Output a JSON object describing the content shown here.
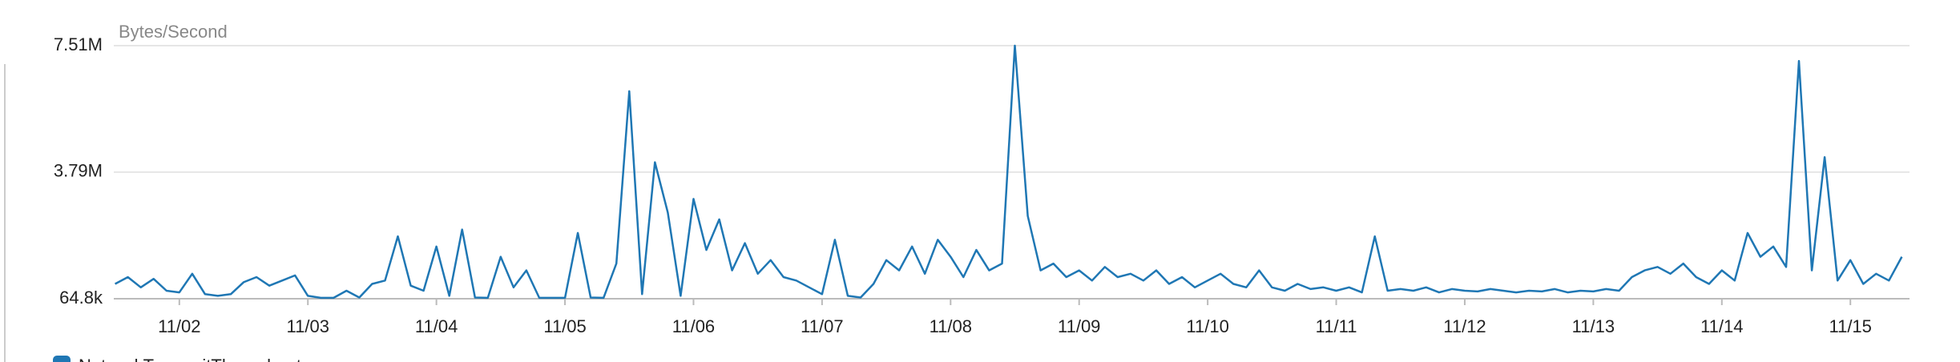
{
  "chart_data": {
    "type": "line",
    "y_label": "Bytes/Second",
    "ylim": [
      64800,
      7510000
    ],
    "yticks": [
      {
        "value": 64800,
        "label": "64.8k"
      },
      {
        "value": 3790000,
        "label": "3.79M"
      },
      {
        "value": 7510000,
        "label": "7.51M"
      }
    ],
    "xlim": [
      1.49,
      15.46
    ],
    "xticks": [
      {
        "value": 2,
        "label": "11/02"
      },
      {
        "value": 3,
        "label": "11/03"
      },
      {
        "value": 4,
        "label": "11/04"
      },
      {
        "value": 5,
        "label": "11/05"
      },
      {
        "value": 6,
        "label": "11/06"
      },
      {
        "value": 7,
        "label": "11/07"
      },
      {
        "value": 8,
        "label": "11/08"
      },
      {
        "value": 9,
        "label": "11/09"
      },
      {
        "value": 10,
        "label": "11/10"
      },
      {
        "value": 11,
        "label": "11/11"
      },
      {
        "value": 12,
        "label": "11/12"
      },
      {
        "value": 13,
        "label": "11/13"
      },
      {
        "value": 14,
        "label": "11/14"
      },
      {
        "value": 15,
        "label": "11/15"
      }
    ],
    "grid": true,
    "x": [
      1.5,
      1.6,
      1.7,
      1.8,
      1.9,
      2.0,
      2.1,
      2.2,
      2.3,
      2.4,
      2.5,
      2.6,
      2.7,
      2.8,
      2.9,
      3.0,
      3.1,
      3.2,
      3.3,
      3.4,
      3.5,
      3.6,
      3.7,
      3.8,
      3.9,
      4.0,
      4.1,
      4.2,
      4.3,
      4.4,
      4.5,
      4.6,
      4.7,
      4.8,
      4.9,
      5.0,
      5.1,
      5.2,
      5.3,
      5.4,
      5.5,
      5.6,
      5.7,
      5.8,
      5.9,
      6.0,
      6.1,
      6.2,
      6.3,
      6.4,
      6.5,
      6.6,
      6.7,
      6.8,
      6.9,
      7.0,
      7.1,
      7.2,
      7.3,
      7.4,
      7.5,
      7.6,
      7.7,
      7.8,
      7.9,
      8.0,
      8.1,
      8.2,
      8.3,
      8.4,
      8.5,
      8.6,
      8.7,
      8.8,
      8.9,
      9.0,
      9.1,
      9.2,
      9.3,
      9.4,
      9.5,
      9.6,
      9.7,
      9.8,
      9.9,
      10.0,
      10.1,
      10.2,
      10.3,
      10.4,
      10.5,
      10.6,
      10.7,
      10.8,
      10.9,
      11.0,
      11.1,
      11.2,
      11.3,
      11.4,
      11.5,
      11.6,
      11.7,
      11.8,
      11.9,
      12.0,
      12.1,
      12.2,
      12.3,
      12.4,
      12.5,
      12.6,
      12.7,
      12.8,
      12.9,
      13.0,
      13.1,
      13.2,
      13.3,
      13.4,
      13.5,
      13.6,
      13.7,
      13.8,
      13.9,
      14.0,
      14.1,
      14.2,
      14.3,
      14.4,
      14.5,
      14.6,
      14.7,
      14.8,
      14.9,
      15.0,
      15.1,
      15.2,
      15.3,
      15.4
    ],
    "series": [
      {
        "name": "NetworkTransmitThroughput",
        "color": "#1f77b4",
        "values": [
          500000,
          700000,
          400000,
          650000,
          300000,
          250000,
          800000,
          200000,
          150000,
          200000,
          550000,
          700000,
          450000,
          600000,
          750000,
          150000,
          90000,
          90000,
          300000,
          100000,
          500000,
          600000,
          1900000,
          450000,
          300000,
          1600000,
          150000,
          2100000,
          100000,
          90000,
          1300000,
          400000,
          900000,
          90000,
          90000,
          90000,
          2000000,
          100000,
          90000,
          1100000,
          6170000,
          200000,
          4080000,
          2600000,
          150000,
          3000000,
          1500000,
          2400000,
          900000,
          1700000,
          800000,
          1200000,
          700000,
          600000,
          400000,
          200000,
          1800000,
          150000,
          100000,
          500000,
          1200000,
          900000,
          1600000,
          800000,
          1800000,
          1300000,
          700000,
          1500000,
          900000,
          1100000,
          7510000,
          2500000,
          900000,
          1100000,
          700000,
          900000,
          600000,
          1000000,
          700000,
          800000,
          600000,
          900000,
          500000,
          700000,
          400000,
          600000,
          800000,
          500000,
          400000,
          900000,
          400000,
          300000,
          500000,
          350000,
          400000,
          300000,
          400000,
          250000,
          1900000,
          300000,
          350000,
          300000,
          400000,
          250000,
          350000,
          300000,
          280000,
          350000,
          300000,
          250000,
          300000,
          280000,
          350000,
          250000,
          300000,
          280000,
          350000,
          300000,
          700000,
          900000,
          1000000,
          800000,
          1100000,
          700000,
          500000,
          900000,
          600000,
          2000000,
          1300000,
          1600000,
          1000000,
          7060000,
          900000,
          4230000,
          600000,
          1200000,
          500000,
          800000,
          600000,
          1300000
        ]
      }
    ]
  }
}
